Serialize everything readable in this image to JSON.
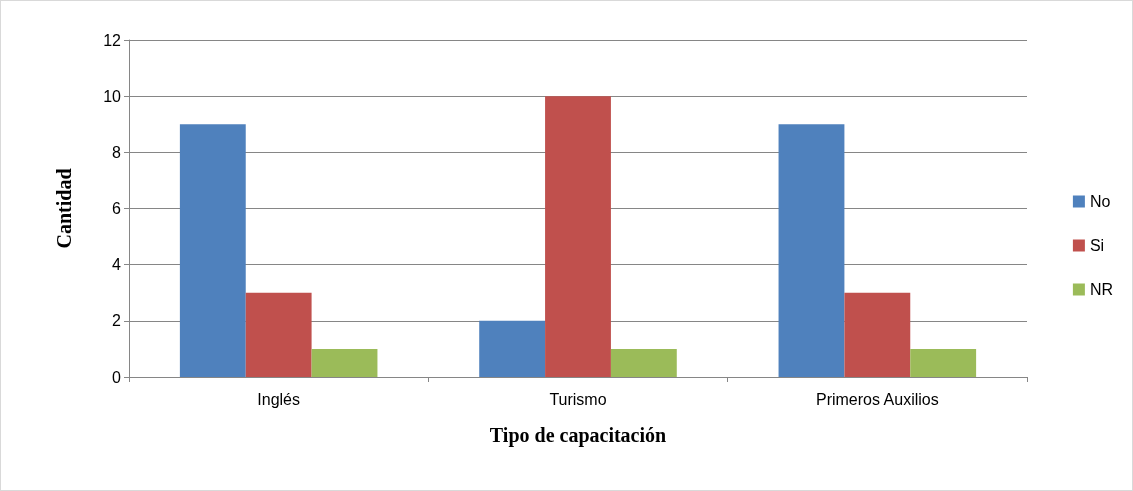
{
  "chart_data": {
    "type": "bar",
    "xlabel": "Tipo de capacitación",
    "ylabel": "Cantidad",
    "categories": [
      "Inglés",
      "Turismo",
      "Primeros Auxilios"
    ],
    "series": [
      {
        "name": "No",
        "color": "#4f81bd",
        "values": [
          9,
          2,
          9
        ]
      },
      {
        "name": "Si",
        "color": "#c0504d",
        "values": [
          3,
          10,
          3
        ]
      },
      {
        "name": "NR",
        "color": "#9bbb59",
        "values": [
          1,
          1,
          1
        ]
      }
    ],
    "ylim": [
      0,
      12
    ],
    "yticks": [
      0,
      2,
      4,
      6,
      8,
      10,
      12
    ],
    "grid": "y",
    "legend": "right"
  }
}
